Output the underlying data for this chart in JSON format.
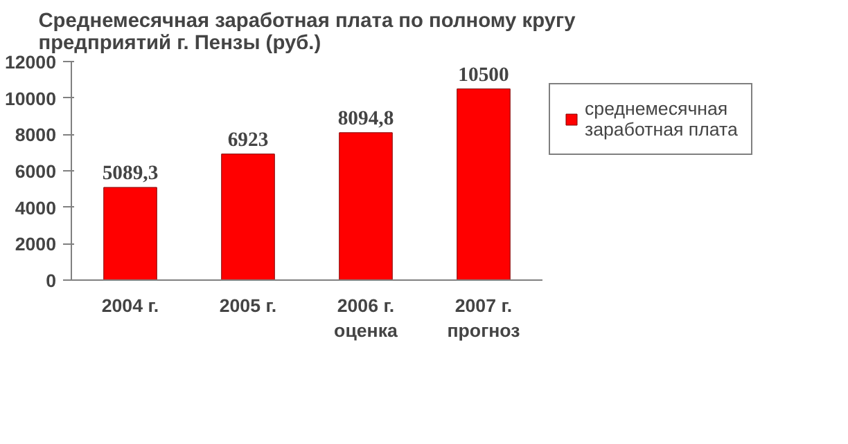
{
  "chart_data": {
    "type": "bar",
    "title": "Среднемесячная заработная плата по полному кругу\nпредприятий г. Пензы (руб.)",
    "categories": [
      "2004 г.",
      "2005 г.",
      "2006 г.\nоценка",
      "2007 г.\nпрогноз"
    ],
    "series": [
      {
        "name": "среднемесячная заработная плата",
        "color": "#ff0000",
        "values": [
          5089.3,
          6923,
          8094.8,
          10500
        ],
        "value_labels": [
          "5089,3",
          "6923",
          "8094,8",
          "10500"
        ]
      }
    ],
    "ylim": [
      0,
      12000
    ],
    "yticks": [
      0,
      2000,
      4000,
      6000,
      8000,
      10000,
      12000
    ],
    "legend": "right",
    "grid": false
  }
}
